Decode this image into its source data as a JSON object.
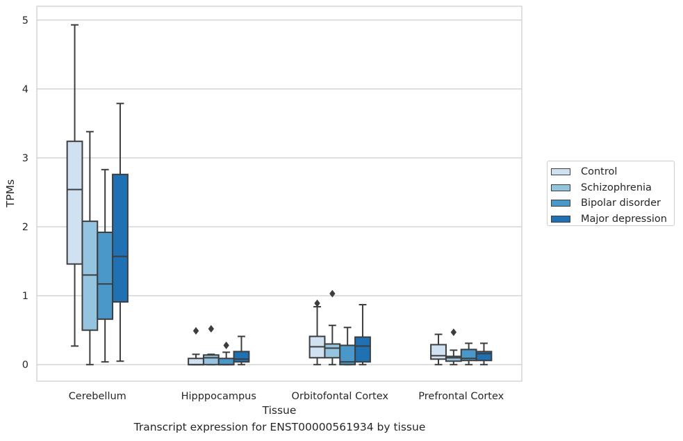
{
  "chart_data": {
    "type": "box",
    "title": "",
    "caption": "Transcript expression for ENST00000561934 by tissue",
    "xlabel": "Tissue",
    "ylabel": "TPMs",
    "ylim": [
      -0.24,
      5.2
    ],
    "yticks": [
      0,
      1,
      2,
      3,
      4,
      5
    ],
    "grid": "horizontal",
    "legend_position": "right",
    "categories": [
      "Cerebellum",
      "Hipppocampus",
      "Orbitofontal Cortex",
      "Prefrontal Cortex"
    ],
    "series": [
      {
        "name": "Control",
        "color": "#d0e1f2",
        "boxes": [
          {
            "whisker_low": 0.27,
            "q1": 1.46,
            "median": 2.54,
            "q3": 3.24,
            "whisker_high": 4.93,
            "outliers": []
          },
          {
            "whisker_low": 0.0,
            "q1": 0.0,
            "median": 0.0,
            "q3": 0.09,
            "whisker_high": 0.15,
            "outliers": [
              0.49
            ]
          },
          {
            "whisker_low": 0.0,
            "q1": 0.1,
            "median": 0.26,
            "q3": 0.41,
            "whisker_high": 0.84,
            "outliers": [
              0.89
            ]
          },
          {
            "whisker_low": 0.0,
            "q1": 0.08,
            "median": 0.13,
            "q3": 0.29,
            "whisker_high": 0.44,
            "outliers": []
          }
        ]
      },
      {
        "name": "Schizophrenia",
        "color": "#94c4df",
        "boxes": [
          {
            "whisker_low": 0.0,
            "q1": 0.5,
            "median": 1.3,
            "q3": 2.08,
            "whisker_high": 3.38,
            "outliers": []
          },
          {
            "whisker_low": 0.0,
            "q1": 0.0,
            "median": 0.1,
            "q3": 0.14,
            "whisker_high": 0.15,
            "outliers": [
              0.52
            ]
          },
          {
            "whisker_low": 0.0,
            "q1": 0.1,
            "median": 0.24,
            "q3": 0.3,
            "whisker_high": 0.57,
            "outliers": [
              1.03
            ]
          },
          {
            "whisker_low": 0.0,
            "q1": 0.05,
            "median": 0.1,
            "q3": 0.12,
            "whisker_high": 0.21,
            "outliers": [
              0.47
            ]
          }
        ]
      },
      {
        "name": "Bipolar disorder",
        "color": "#4a98c9",
        "boxes": [
          {
            "whisker_low": 0.04,
            "q1": 0.66,
            "median": 1.17,
            "q3": 1.92,
            "whisker_high": 2.83,
            "outliers": []
          },
          {
            "whisker_low": 0.0,
            "q1": 0.0,
            "median": 0.0,
            "q3": 0.09,
            "whisker_high": 0.18,
            "outliers": [
              0.28
            ]
          },
          {
            "whisker_low": 0.0,
            "q1": 0.0,
            "median": 0.04,
            "q3": 0.28,
            "whisker_high": 0.54,
            "outliers": []
          },
          {
            "whisker_low": 0.0,
            "q1": 0.06,
            "median": 0.09,
            "q3": 0.22,
            "whisker_high": 0.31,
            "outliers": []
          }
        ]
      },
      {
        "name": "Major depression",
        "color": "#2070b4",
        "boxes": [
          {
            "whisker_low": 0.05,
            "q1": 0.91,
            "median": 1.57,
            "q3": 2.76,
            "whisker_high": 3.79,
            "outliers": []
          },
          {
            "whisker_low": 0.0,
            "q1": 0.04,
            "median": 0.08,
            "q3": 0.19,
            "whisker_high": 0.41,
            "outliers": []
          },
          {
            "whisker_low": 0.0,
            "q1": 0.04,
            "median": 0.27,
            "q3": 0.4,
            "whisker_high": 0.87,
            "outliers": []
          },
          {
            "whisker_low": 0.0,
            "q1": 0.06,
            "median": 0.16,
            "q3": 0.19,
            "whisker_high": 0.31,
            "outliers": []
          }
        ]
      }
    ]
  }
}
